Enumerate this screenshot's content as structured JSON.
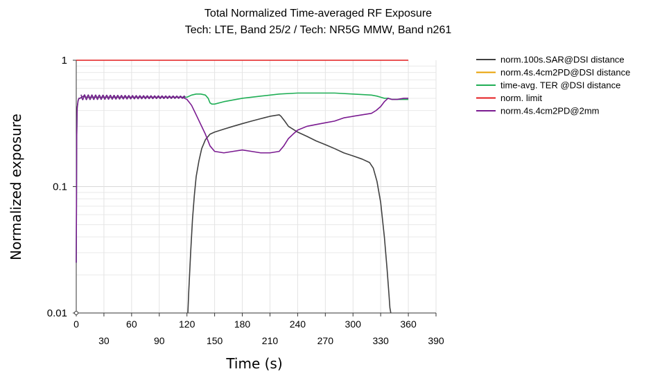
{
  "chart_data": {
    "type": "line",
    "title": "Total Normalized Time-averaged RF Exposure",
    "subtitle": "Tech: LTE, Band 25/2 / Tech: NR5G MMW, Band n261",
    "xlabel": "Time (s)",
    "ylabel": "Normalized exposure",
    "x_scale": "linear",
    "y_scale": "log",
    "xlim": [
      0,
      390
    ],
    "ylim": [
      0.01,
      1
    ],
    "x_ticks_row1": [
      "0",
      "60",
      "120",
      "180",
      "240",
      "300",
      "360"
    ],
    "x_ticks_row2": [
      "30",
      "90",
      "150",
      "210",
      "270",
      "330",
      "390"
    ],
    "y_ticks": [
      "0.01",
      "0.1",
      "1"
    ],
    "grid": true,
    "legend_position": "right",
    "series": [
      {
        "name": "norm.100s.SAR@DSI distance",
        "color": "#404040",
        "x": [
          121,
          122,
          124,
          126,
          128,
          130,
          133,
          136,
          140,
          145,
          150,
          160,
          170,
          180,
          190,
          200,
          210,
          220,
          222,
          226,
          230,
          240,
          250,
          260,
          270,
          280,
          290,
          300,
          310,
          318,
          322,
          326,
          330,
          334,
          337,
          339,
          340,
          341
        ],
        "y": [
          0.01,
          0.015,
          0.03,
          0.055,
          0.085,
          0.12,
          0.16,
          0.2,
          0.235,
          0.26,
          0.27,
          0.285,
          0.3,
          0.315,
          0.33,
          0.345,
          0.36,
          0.37,
          0.36,
          0.33,
          0.3,
          0.27,
          0.25,
          0.23,
          0.215,
          0.2,
          0.185,
          0.175,
          0.165,
          0.155,
          0.14,
          0.11,
          0.075,
          0.04,
          0.022,
          0.014,
          0.011,
          0.01
        ]
      },
      {
        "name": "norm.4s.4cm2PD@DSI distance",
        "color": "#e8a000",
        "x": [],
        "y": []
      },
      {
        "name": "time-avg. TER @DSI distance",
        "color": "#1fae55",
        "x": [
          0,
          0.5,
          1,
          2,
          3,
          4,
          6,
          8,
          10,
          15,
          20,
          30,
          40,
          60,
          80,
          100,
          110,
          120,
          125,
          130,
          135,
          140,
          143,
          145,
          147,
          150,
          160,
          180,
          200,
          220,
          240,
          260,
          280,
          300,
          320,
          326,
          330,
          334,
          338,
          342,
          348,
          355,
          360
        ],
        "y": [
          0.025,
          0.25,
          0.42,
          0.48,
          0.5,
          0.5,
          0.51,
          0.52,
          0.51,
          0.51,
          0.51,
          0.51,
          0.51,
          0.51,
          0.51,
          0.51,
          0.51,
          0.51,
          0.53,
          0.54,
          0.54,
          0.53,
          0.5,
          0.46,
          0.45,
          0.45,
          0.47,
          0.5,
          0.52,
          0.54,
          0.55,
          0.55,
          0.55,
          0.54,
          0.53,
          0.52,
          0.51,
          0.5,
          0.5,
          0.49,
          0.49,
          0.49,
          0.49
        ]
      },
      {
        "name": "norm. limit",
        "color": "#e41a1c",
        "x": [
          0,
          360
        ],
        "y": [
          1,
          1
        ]
      },
      {
        "name": "norm.4s.4cm2PD@2mm",
        "color": "#7a1a90",
        "x": [
          0,
          0.5,
          1,
          2,
          3,
          4,
          6,
          8,
          10,
          20,
          40,
          60,
          80,
          100,
          110,
          115,
          120,
          125,
          130,
          135,
          140,
          145,
          150,
          160,
          170,
          180,
          190,
          200,
          210,
          220,
          225,
          230,
          235,
          240,
          250,
          260,
          270,
          280,
          290,
          300,
          310,
          320,
          325,
          330,
          334,
          338,
          342,
          348,
          355,
          360
        ],
        "y": [
          0.025,
          0.25,
          0.42,
          0.48,
          0.5,
          0.5,
          0.51,
          0.52,
          0.51,
          0.51,
          0.51,
          0.51,
          0.51,
          0.51,
          0.51,
          0.51,
          0.49,
          0.44,
          0.37,
          0.31,
          0.26,
          0.21,
          0.19,
          0.185,
          0.19,
          0.195,
          0.19,
          0.185,
          0.185,
          0.19,
          0.21,
          0.24,
          0.26,
          0.28,
          0.3,
          0.31,
          0.32,
          0.33,
          0.35,
          0.36,
          0.37,
          0.38,
          0.4,
          0.43,
          0.47,
          0.5,
          0.49,
          0.49,
          0.5,
          0.5
        ]
      }
    ]
  }
}
